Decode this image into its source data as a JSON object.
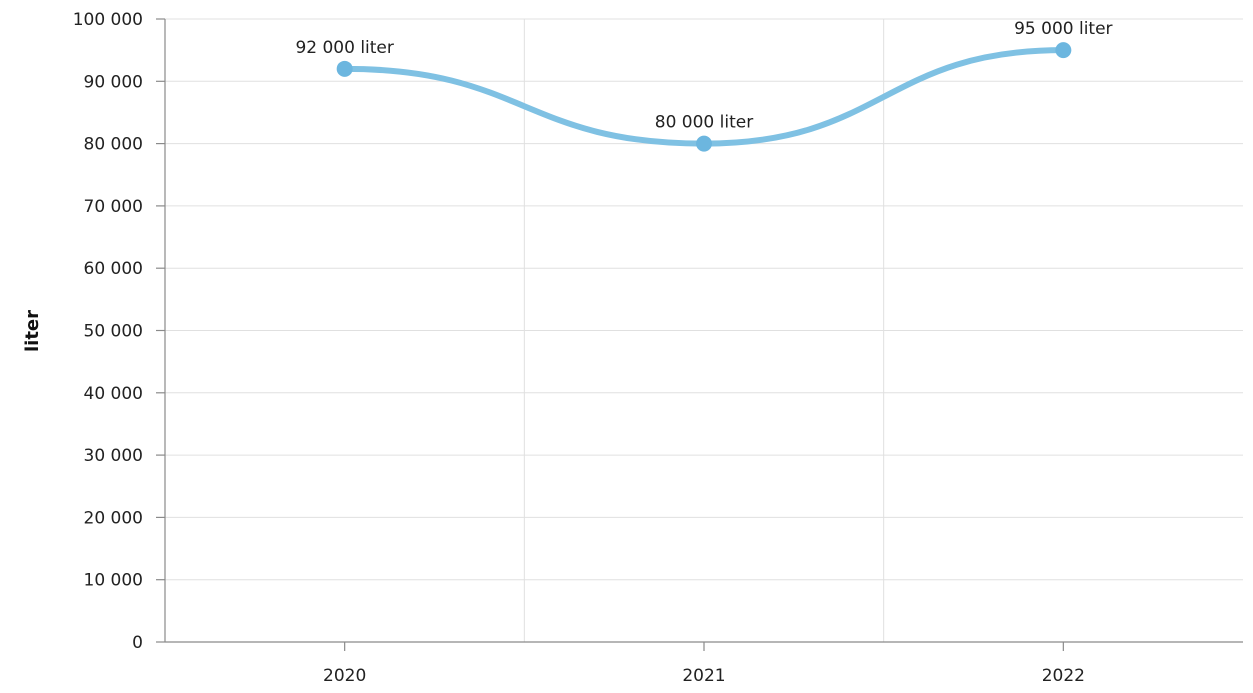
{
  "chart_data": {
    "type": "line",
    "smooth": true,
    "categories": [
      "2020",
      "2021",
      "2022"
    ],
    "series": [
      {
        "values": [
          92000,
          80000,
          95000
        ],
        "data_labels": [
          "92 000 liter",
          "80 000 liter",
          "95 000 liter"
        ],
        "color": "#7fc1e3",
        "marker_color": "#6cb6df"
      }
    ],
    "ylabel": "liter",
    "ylim": [
      0,
      100000
    ],
    "y_ticks": [
      0,
      10000,
      20000,
      30000,
      40000,
      50000,
      60000,
      70000,
      80000,
      90000,
      100000
    ],
    "y_tick_labels": [
      "0",
      "10 000",
      "20 000",
      "30 000",
      "40 000",
      "50 000",
      "60 000",
      "70 000",
      "80 000",
      "90 000",
      "100 000"
    ],
    "grid": true
  }
}
